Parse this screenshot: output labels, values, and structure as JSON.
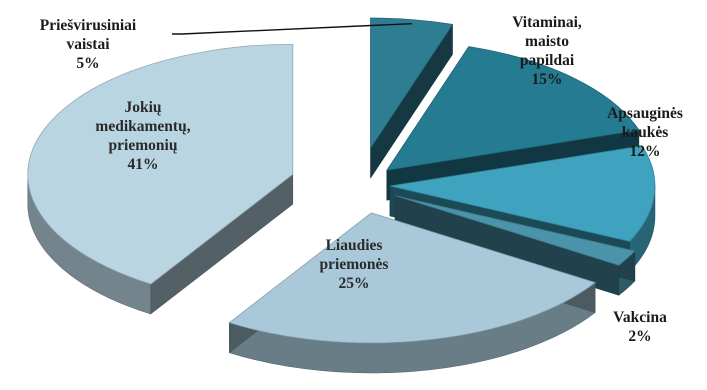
{
  "chart_data": {
    "type": "pie",
    "style": "3d-exploded",
    "title": "",
    "colors": {
      "Priešvirusiniai vaistai": "#2f7d93",
      "Vitaminai, maisto papildai": "#257c92",
      "Apsauginės kaukės": "#3fa3bf",
      "Vakcina": "#4a93a8",
      "Liaudies priemonės": "#a9c9da",
      "Jokių medikamentų, priemonių": "#b9d5e2"
    },
    "slices": [
      {
        "label": [
          "Priešvirusiniai",
          "vaistai"
        ],
        "pct_text": "5%",
        "value": 5
      },
      {
        "label": [
          "Vitaminai,",
          "maisto",
          "papildai"
        ],
        "pct_text": "15%",
        "value": 15
      },
      {
        "label": [
          "Apsauginės",
          "kaukės"
        ],
        "pct_text": "12%",
        "value": 12
      },
      {
        "label": [
          "Vakcina"
        ],
        "pct_text": "2%",
        "value": 2
      },
      {
        "label": [
          "Liaudies",
          "priemonės"
        ],
        "pct_text": "25%",
        "value": 25
      },
      {
        "label": [
          "Jokių",
          "medikamentų,",
          "priemonių"
        ],
        "pct_text": "41%",
        "value": 41
      }
    ]
  }
}
